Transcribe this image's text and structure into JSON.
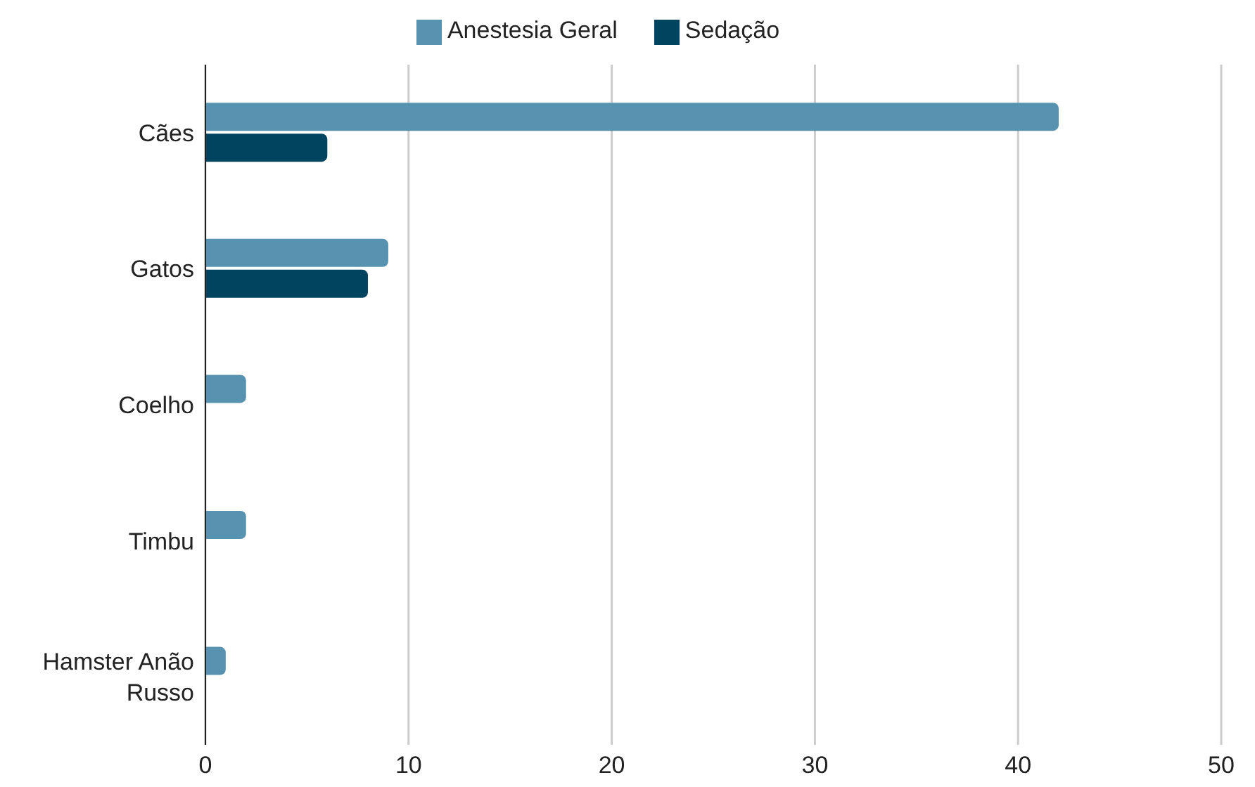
{
  "chart_data": {
    "type": "bar",
    "orientation": "horizontal",
    "categories": [
      "Cães",
      "Gatos",
      "Coelho",
      "Timbu",
      "Hamster Anão Russo"
    ],
    "series": [
      {
        "name": "Anestesia Geral",
        "color": "#5793b0",
        "values": [
          42,
          9,
          2,
          2,
          1
        ]
      },
      {
        "name": "Sedação",
        "color": "#00445f",
        "values": [
          6,
          8,
          0,
          0,
          0
        ]
      }
    ],
    "xlim": [
      0,
      50
    ],
    "xticks": [
      0,
      10,
      20,
      30,
      40,
      50
    ],
    "grid": "x",
    "legend": "top"
  }
}
